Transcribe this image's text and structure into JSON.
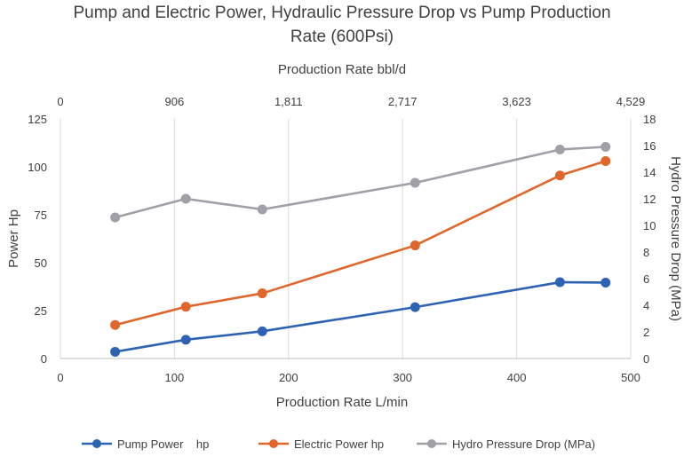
{
  "chart_data": {
    "type": "line",
    "title_line1": "Pump and Electric Power, Hydraulic Pressure Drop vs Pump Production",
    "title_line2": "Rate  (600Psi)",
    "xlabel": "Production Rate L/min",
    "x2label": "Production Rate bbl/d",
    "ylabel": "Power Hp",
    "y2label": "Hydro Pressure Drop (MPa)",
    "xlim": [
      0,
      500
    ],
    "x_ticks": [
      "0",
      "100",
      "200",
      "300",
      "400",
      "500"
    ],
    "x_tick_values": [
      0,
      100,
      200,
      300,
      400,
      500
    ],
    "x2_ticks": [
      "0",
      "906",
      "1,811",
      "2,717",
      "3,623",
      "4,529"
    ],
    "ylim": [
      0,
      125
    ],
    "y_ticks": [
      "0",
      "25",
      "50",
      "75",
      "100",
      "125"
    ],
    "y_tick_values": [
      0,
      25,
      50,
      75,
      100,
      125
    ],
    "y2lim": [
      0,
      18
    ],
    "y2_ticks": [
      "0",
      "2",
      "4",
      "6",
      "8",
      "10",
      "12",
      "14",
      "16",
      "18"
    ],
    "y2_tick_values": [
      0,
      2,
      4,
      6,
      8,
      10,
      12,
      14,
      16,
      18
    ],
    "grid": "vertical",
    "legend_position": "bottom",
    "x": [
      48,
      110,
      177,
      311,
      438,
      478
    ],
    "series": [
      {
        "name": "Pump Power    hp",
        "axis": "left",
        "color": "#2E63B4",
        "values": [
          3.5,
          9.8,
          14.2,
          26.8,
          39.8,
          39.6
        ]
      },
      {
        "name": "Electric Power hp",
        "axis": "left",
        "color": "#E0672B",
        "values": [
          17.5,
          27.0,
          34.0,
          59.0,
          95.5,
          103.0
        ]
      },
      {
        "name": "Hydro Pressure Drop (MPa)",
        "axis": "right",
        "color": "#A0A0A8",
        "values": [
          10.6,
          12.0,
          11.2,
          13.2,
          15.7,
          15.9
        ]
      }
    ]
  }
}
